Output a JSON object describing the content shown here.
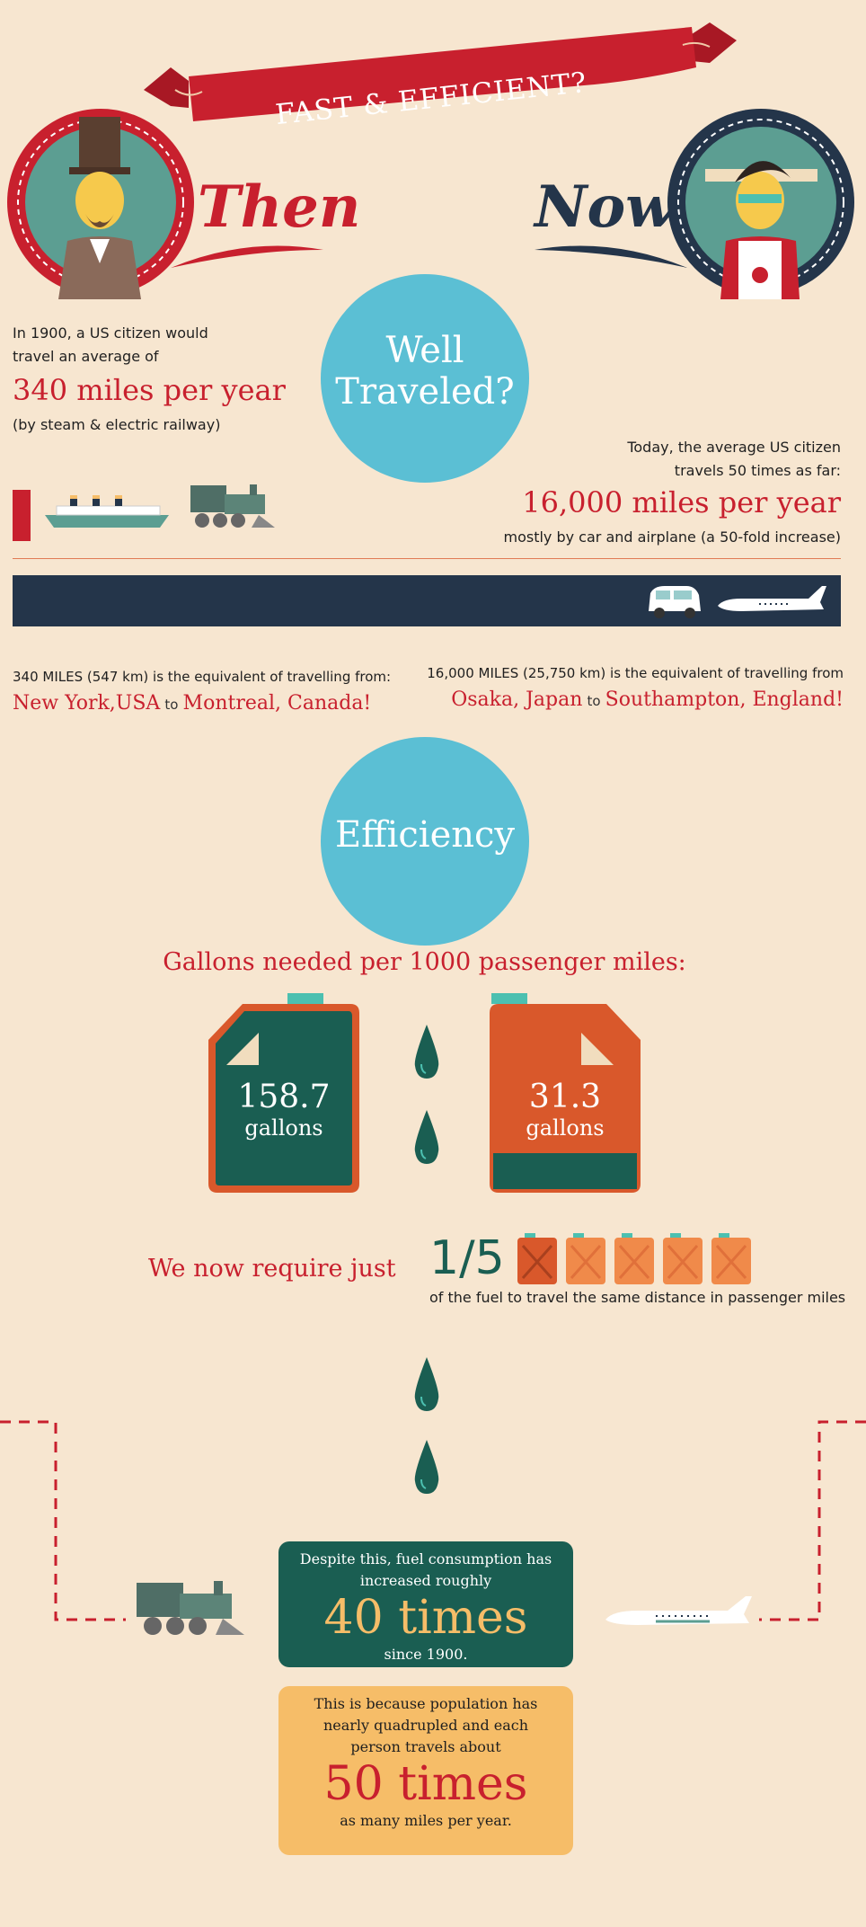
{
  "header": {
    "banner": "FAST & EFFICIENT?",
    "then_label": "Then",
    "now_label": "Now"
  },
  "well_traveled": {
    "title_line1": "Well",
    "title_line2": "Traveled?",
    "then": {
      "line1": "In 1900, a US citizen would",
      "line2": "travel an average of",
      "figure": "340 miles per year",
      "note": "(by steam & electric railway)"
    },
    "now": {
      "line1": "Today, the average US citizen",
      "line2": "travels 50 times as far:",
      "figure": "16,000 miles per year",
      "note": "mostly by car and airplane (a 50-fold increase)"
    }
  },
  "distances": {
    "left_intro": "340 MILES (547 km) is the equivalent of travelling from:",
    "left_from": "New York,USA",
    "left_to_word": "to",
    "left_dest": "Montreal, Canada!",
    "right_intro": "16,000 MILES (25,750 km) is the equivalent of travelling from",
    "right_from": "Osaka, Japan",
    "right_to_word": "to",
    "right_dest": "Southampton, England!"
  },
  "efficiency": {
    "title": "Efficiency",
    "subtitle": "Gallons needed per 1000 passenger miles:",
    "then_value": "158.7",
    "now_value": "31.3",
    "unit": "gallons",
    "require_text": "We now require just",
    "fraction": "1/5",
    "fraction_note": "of the fuel to travel the same distance in passenger miles"
  },
  "consumption": {
    "line1": "Despite this, fuel consumption has",
    "line2": "increased roughly",
    "figure": "40 times",
    "line3": "since 1900."
  },
  "population": {
    "line1": "This is because population has",
    "line2": "nearly quadrupled and each",
    "line3": "person travels about",
    "figure": "50 times",
    "line4": "as many miles per year."
  },
  "colors": {
    "background": "#f7e6d0",
    "red": "#c8202e",
    "navy": "#24354a",
    "sky": "#5bbfd4",
    "teal": "#1a5e52",
    "orange": "#d9582b",
    "amber": "#f6bd68"
  }
}
